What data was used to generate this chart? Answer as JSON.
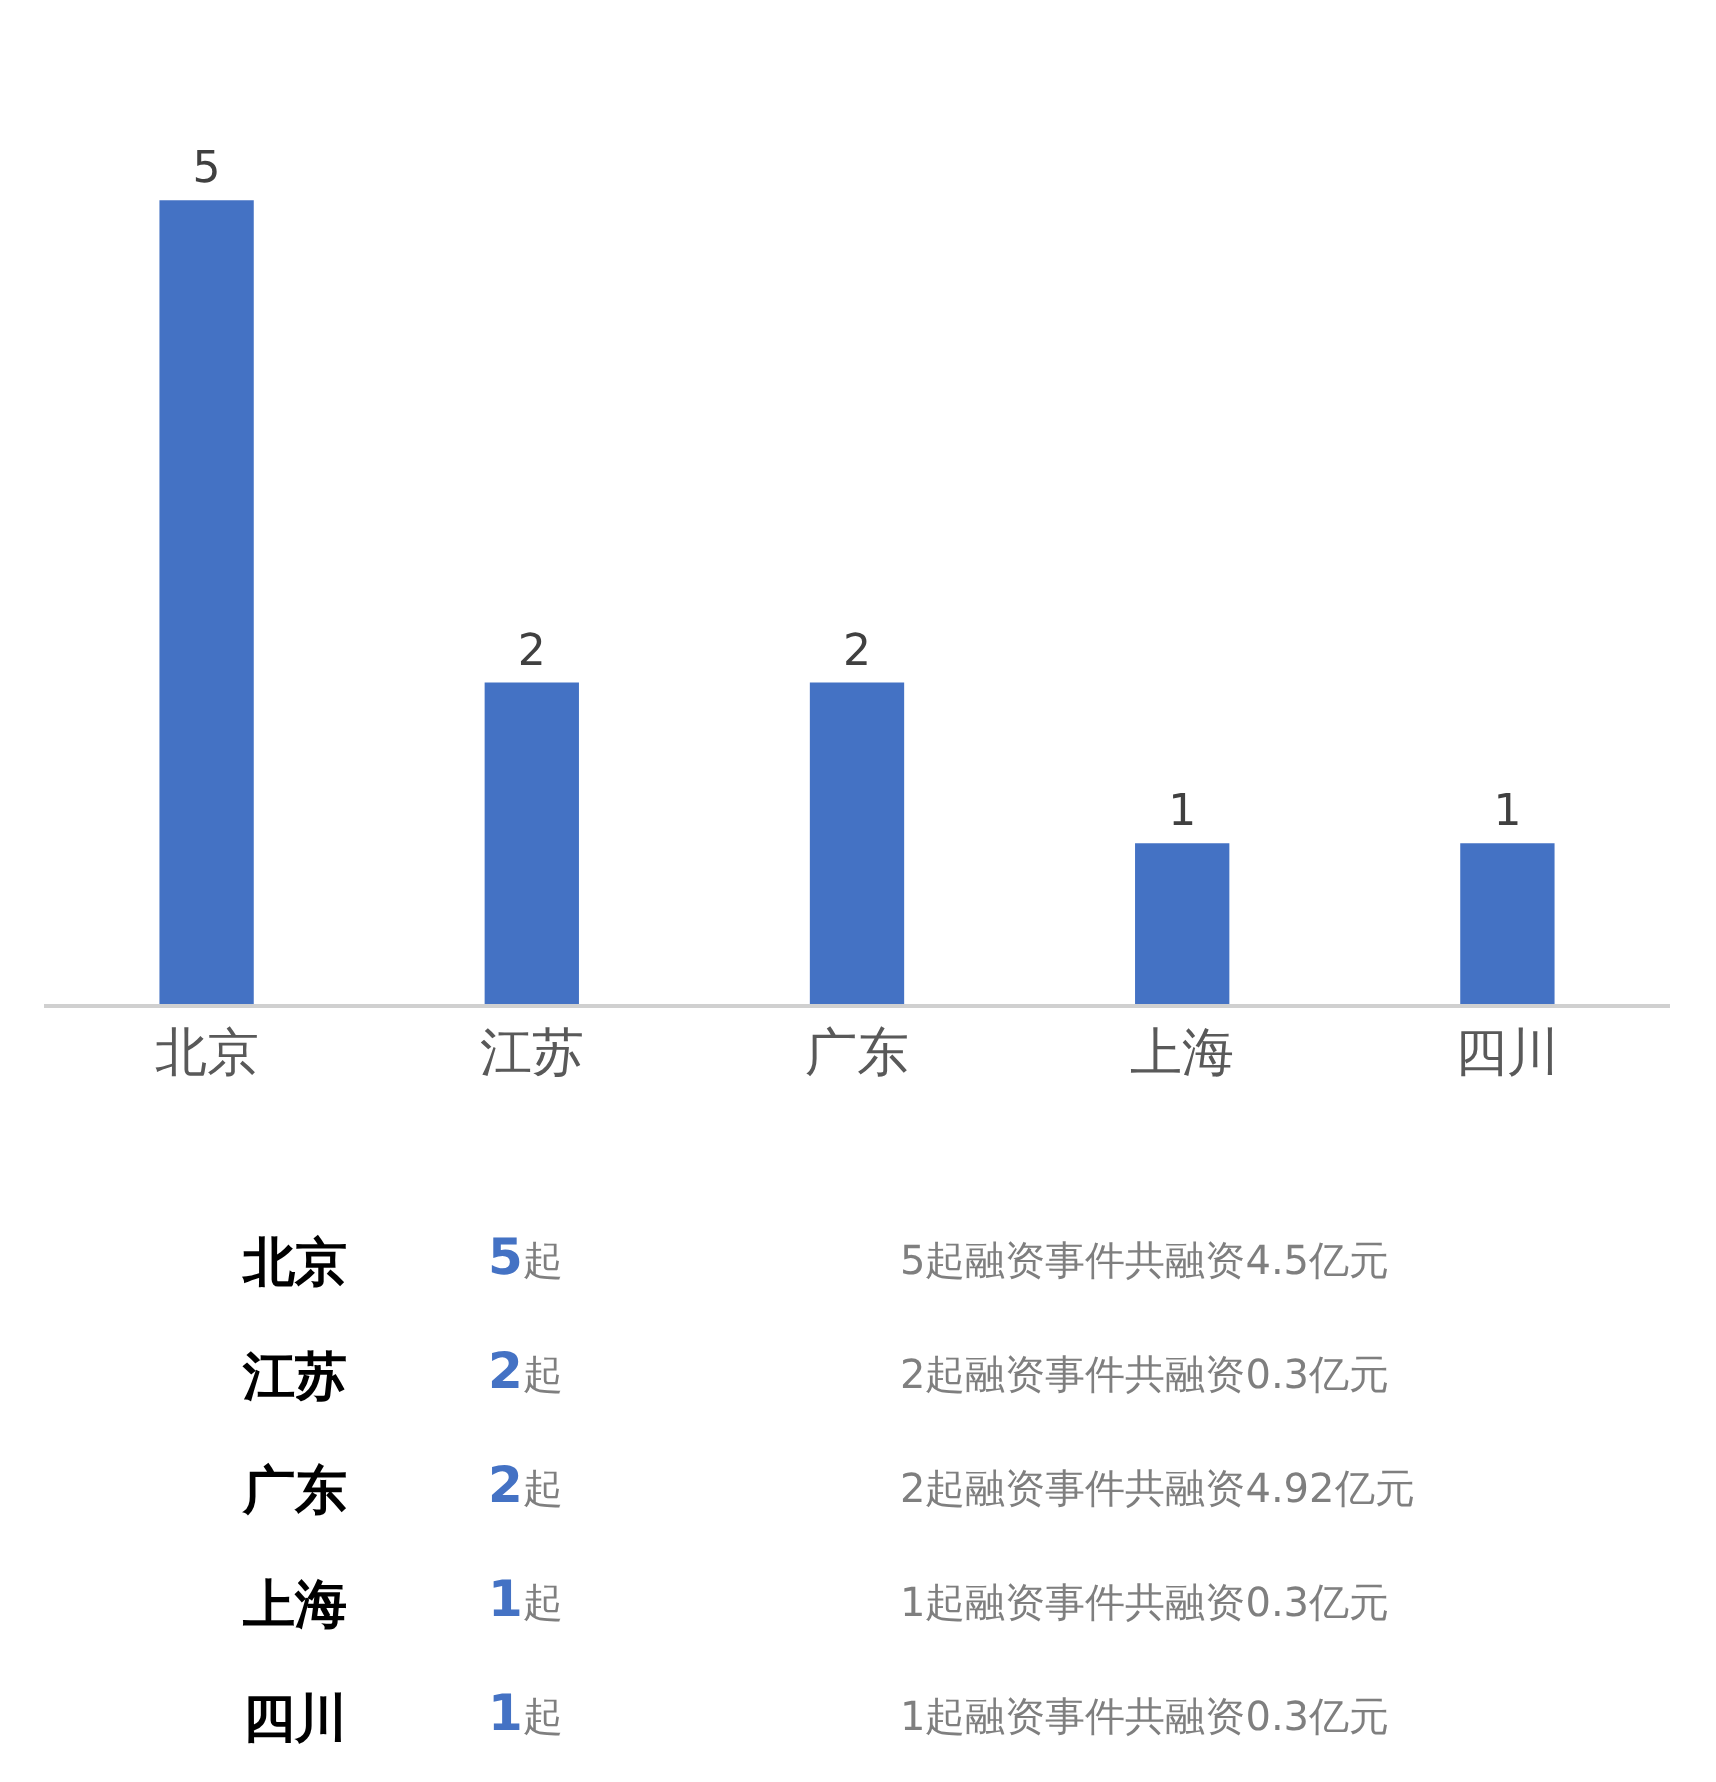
{
  "chart_data": {
    "type": "bar",
    "categories": [
      "北京",
      "江苏",
      "广东",
      "上海",
      "四川"
    ],
    "values": [
      5,
      2,
      2,
      1,
      1
    ],
    "color": "#4472c4",
    "data_labels": true,
    "annotations": [
      "5起",
      "5起融资事件共融资4.5亿元",
      "2起",
      "2起融资事件共融资0.3亿元",
      "2起",
      "2起融资事件共融资4.92亿元",
      "1起",
      "1起融资事件共融资0.3亿元",
      "1起",
      "1起融资事件共融资0.3亿元"
    ]
  }
}
